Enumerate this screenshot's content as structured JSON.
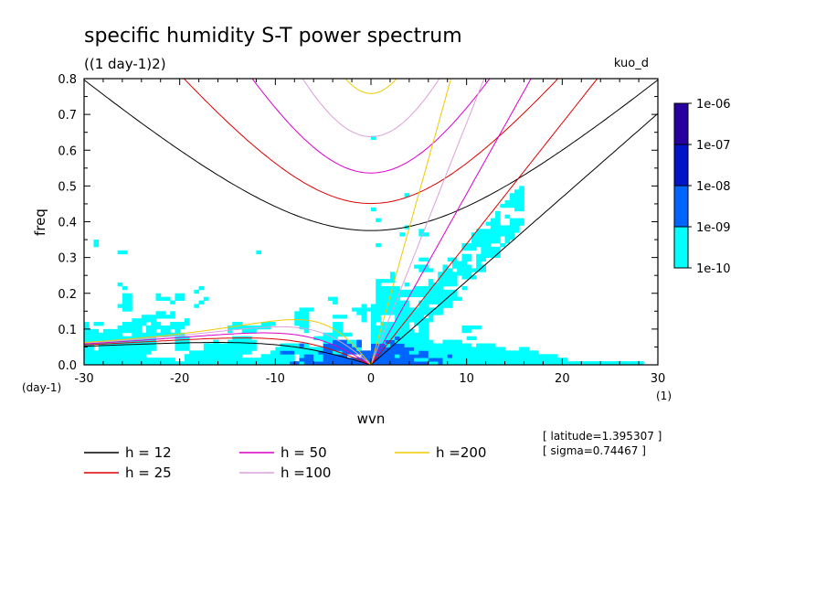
{
  "chart_data": {
    "type": "heatmap",
    "title": "specific humidity S-T power spectrum",
    "subtitle": "((1 day-1)2)",
    "run_label": "kuo_d",
    "xlabel": "wvn",
    "ylabel": "freq",
    "x_unit_label": "(1)",
    "y_unit_label": "(day-1)",
    "xlim": [
      -30,
      30
    ],
    "ylim": [
      0,
      0.8
    ],
    "x_ticks": [
      -30,
      -20,
      -10,
      0,
      10,
      20,
      30
    ],
    "x_tick_labels": [
      "-30",
      "-20",
      "-10",
      "0",
      "10",
      "20",
      "30"
    ],
    "y_ticks": [
      0,
      0.1,
      0.2,
      0.3,
      0.4,
      0.5,
      0.6,
      0.7,
      0.8
    ],
    "y_tick_labels": [
      "0.0",
      "0.1",
      "0.2",
      "0.3",
      "0.4",
      "0.5",
      "0.6",
      "0.7",
      "0.8"
    ],
    "colorbar": {
      "levels": [
        "1e-10",
        "1e-09",
        "1e-08",
        "1e-07",
        "1e-06"
      ],
      "colors": [
        "#00ffff",
        "#0064ff",
        "#0014c8",
        "#2800a0"
      ]
    },
    "dispersion_curves": [
      {
        "name": "h = 12",
        "h": 12,
        "color": "#000000"
      },
      {
        "name": "h = 25",
        "h": 25,
        "color": "#dc0000"
      },
      {
        "name": "h = 50",
        "h": 50,
        "color": "#dc00c8"
      },
      {
        "name": "h =100",
        "h": 100,
        "color": "#dca0dc"
      },
      {
        "name": "h =200",
        "h": 200,
        "color": "#f0c800"
      }
    ],
    "annotations": [
      "[ latitude=1.395307 ]",
      "[ sigma=0.74467 ]"
    ]
  }
}
